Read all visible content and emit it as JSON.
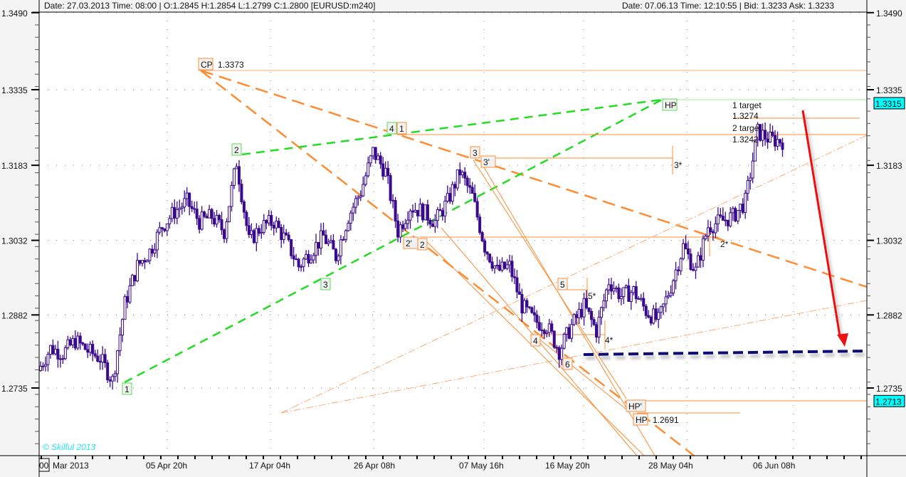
{
  "header": {
    "left": "Date:  27.03.2013 Time:  08:00 | O:1.2845 H:1.2854  L:1.2799 C:1.2800   [EURUSD:m240]",
    "right": "Date: 07.06.13 Time: 12:10:55 | Bid:  1.3233 Ask:  1.3233"
  },
  "watermark": "© Skilful 2013",
  "colors": {
    "candle": "#3a0a8c",
    "orange": "#ff8c33",
    "green": "#22dd22",
    "red": "#ee1111",
    "dark_red": "#a00000",
    "navy": "#0a0a78",
    "cyan": "#00ffff"
  },
  "chart_data": {
    "type": "candlestick",
    "symbol": "EURUSD:m240",
    "ylim": [
      1.2625,
      1.349
    ],
    "y_ticks": [
      "1.3490",
      "1.3335",
      "1.3183",
      "1.3032",
      "1.2882",
      "1.2735"
    ],
    "x_ticks": [
      "00",
      "Mar 2013",
      "05 Apr 20h",
      "17 Apr 04h",
      "26 Apr 08h",
      "07 May 16h",
      "16 May 20h",
      "28 May 04h",
      "06 Jun 08h"
    ],
    "grid": true,
    "closes_sampled": [
      1.277,
      1.2815,
      1.2805,
      1.283,
      1.281,
      1.2795,
      1.275,
      1.2905,
      1.298,
      1.301,
      1.306,
      1.309,
      1.311,
      1.307,
      1.308,
      1.305,
      1.319,
      1.303,
      1.306,
      1.307,
      1.303,
      1.298,
      1.301,
      1.304,
      1.3,
      1.308,
      1.313,
      1.321,
      1.317,
      1.305,
      1.31,
      1.309,
      1.307,
      1.311,
      1.317,
      1.312,
      1.302,
      1.297,
      1.298,
      1.29,
      1.287,
      1.286,
      1.281,
      1.286,
      1.29,
      1.285,
      1.295,
      1.292,
      1.293,
      1.289,
      1.287,
      1.294,
      1.302,
      1.297,
      1.306,
      1.307,
      1.308,
      1.311,
      1.325,
      1.3235,
      1.3232
    ],
    "price_markers": [
      {
        "label": "1.3315"
      },
      {
        "label": "1.2713"
      }
    ]
  },
  "annotations": {
    "cp": {
      "tag": "CP",
      "value": "1.3373"
    },
    "hp_top": "HP",
    "hp_prime": "HP'",
    "hp_bottom": {
      "tag": "HP",
      "value": "1.2691"
    },
    "target1": {
      "label": "1 target",
      "value": "1.3274"
    },
    "target2": {
      "label": "2 target",
      "value": "1.3242"
    },
    "points": {
      "p1": "1",
      "p2": "2",
      "p3": "3",
      "p4": "4",
      "p1b": "1",
      "p3o": "3",
      "p3prime": "3'",
      "p3star": "3*",
      "p2prime": "2'",
      "p2o": "2",
      "p2star": "2*",
      "p5": "5",
      "p5star": "5*",
      "p4o": "4",
      "p4star": "4*",
      "p6": "6"
    }
  }
}
